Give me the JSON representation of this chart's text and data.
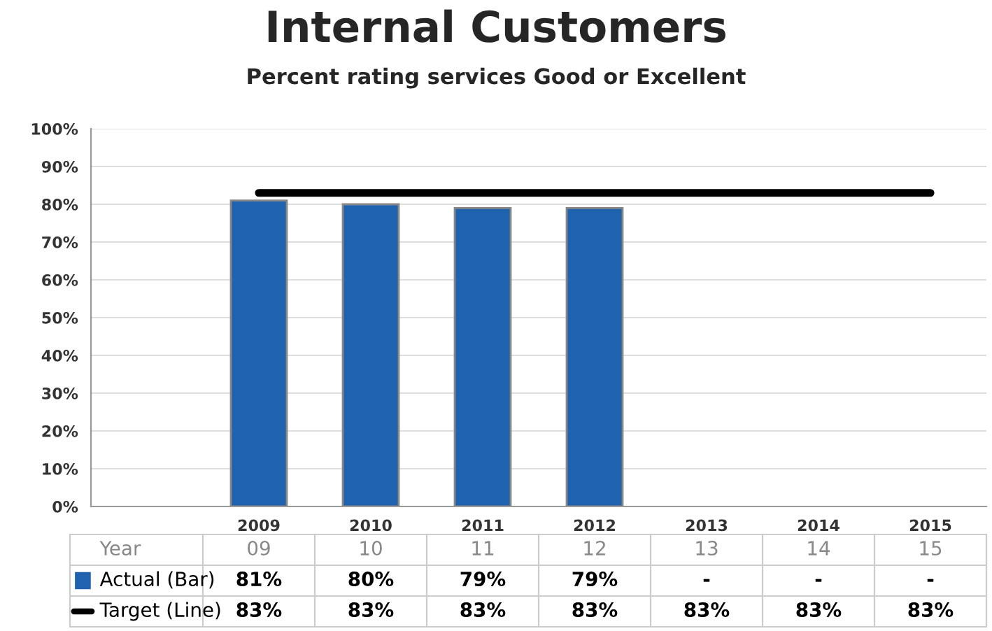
{
  "chart_data": {
    "type": "bar",
    "title": "Internal Customers",
    "subtitle": "Percent rating services Good or Excellent",
    "categories": [
      "2009",
      "2010",
      "2011",
      "2012",
      "2013",
      "2014",
      "2015"
    ],
    "series": [
      {
        "name": "Actual (Bar)",
        "color": "#1f62ad",
        "values": [
          81,
          80,
          79,
          79,
          null,
          null,
          null
        ],
        "value_labels": [
          "81%",
          "80%",
          "79%",
          "79%",
          "-",
          "-",
          "-"
        ]
      },
      {
        "name": "Target (Line)",
        "type": "line",
        "color": "#000000",
        "values": [
          83,
          83,
          83,
          83,
          83,
          83,
          83
        ],
        "value_labels": [
          "83%",
          "83%",
          "83%",
          "83%",
          "83%",
          "83%",
          "83%"
        ],
        "marker": "none",
        "line_style": "solid"
      }
    ],
    "annotations": [
      "Year",
      "09",
      "10",
      "11",
      "12",
      "13",
      "14",
      "15"
    ],
    "ylim": [
      0,
      100
    ],
    "yticks": [
      {
        "value": 0,
        "label": "0%"
      },
      {
        "value": 10,
        "label": "10%"
      },
      {
        "value": 20,
        "label": "20%"
      },
      {
        "value": 30,
        "label": "30%"
      },
      {
        "value": 40,
        "label": "40%"
      },
      {
        "value": 50,
        "label": "50%"
      },
      {
        "value": 60,
        "label": "60%"
      },
      {
        "value": 70,
        "label": "70%"
      },
      {
        "value": 80,
        "label": "80%"
      },
      {
        "value": 90,
        "label": "90%"
      },
      {
        "value": 100,
        "label": "100%"
      }
    ],
    "grid": "y",
    "legend": "bottom"
  }
}
